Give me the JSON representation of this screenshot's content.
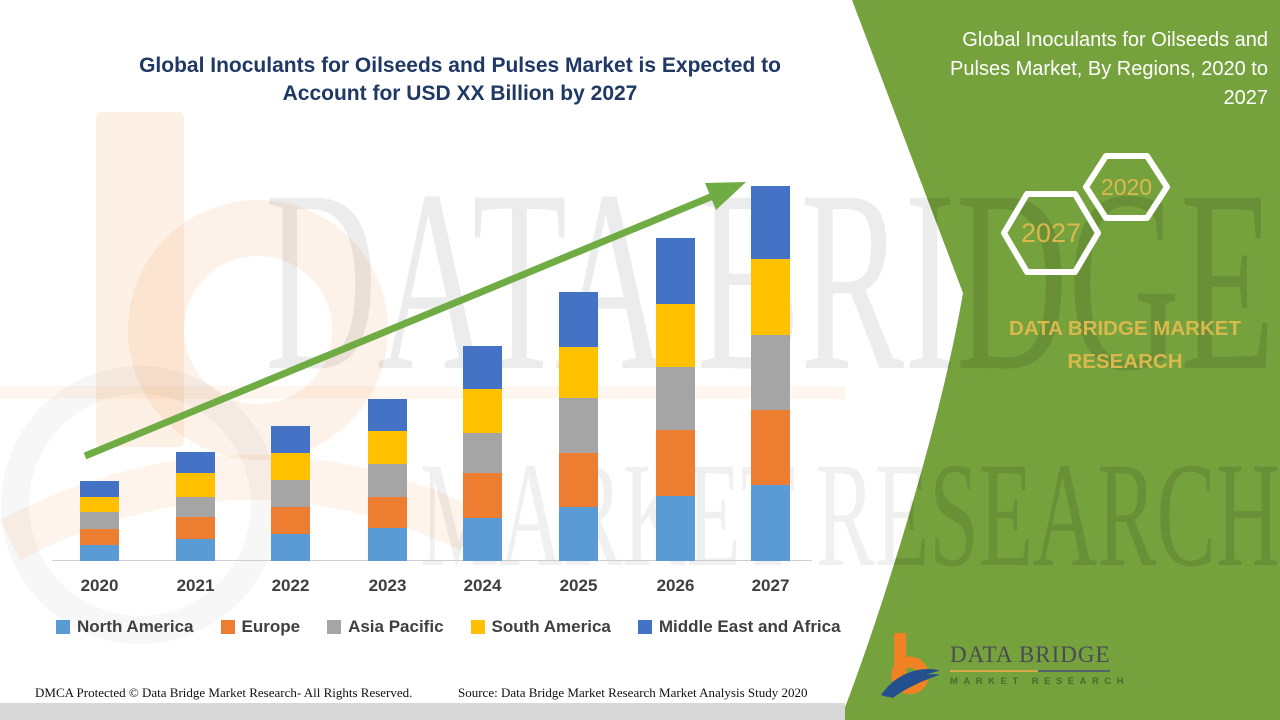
{
  "header": {
    "left_title_lines": [
      "Global Inoculants for Oilseeds and Pulses Market is Expected to",
      "Account for USD XX Billion by 2027"
    ],
    "right_title_lines": [
      "Global Inoculants for Oilseeds and",
      "Pulses Market, By Regions, 2020 to",
      "2027"
    ]
  },
  "side_panel": {
    "hex_small_label": "2020",
    "hex_large_label": "2027",
    "brand_lines": [
      "DATA BRIDGE MARKET",
      "RESEARCH"
    ]
  },
  "chart_data": {
    "type": "bar",
    "stacked": true,
    "title": "Global Inoculants for Oilseeds and Pulses Market is Expected to Account for USD XX Billion by 2027",
    "xlabel": "",
    "ylabel": "",
    "y_axis_visible": false,
    "legend_position": "bottom",
    "value_units": "USD Billion (actual values undisclosed, shown as XX)",
    "values_note": "relative magnitudes estimated from bar pixel heights; all five regions grow steadily 2020-2027",
    "categories": [
      "2020",
      "2021",
      "2022",
      "2023",
      "2024",
      "2025",
      "2026",
      "2027"
    ],
    "series": [
      {
        "name": "North America",
        "color": "#5B9BD5",
        "values": [
          16,
          22,
          27,
          33,
          43,
          54,
          65,
          76
        ]
      },
      {
        "name": "Europe",
        "color": "#ED7D31",
        "values": [
          16,
          22,
          27,
          31,
          45,
          54,
          66,
          75
        ]
      },
      {
        "name": "Asia Pacific",
        "color": "#A5A5A5",
        "values": [
          17,
          20,
          27,
          33,
          40,
          55,
          63,
          75
        ]
      },
      {
        "name": "South America",
        "color": "#FFC000",
        "values": [
          15,
          24,
          27,
          33,
          44,
          51,
          63,
          76
        ]
      },
      {
        "name": "Middle East and Africa",
        "color": "#4472C4",
        "values": [
          16,
          21,
          27,
          32,
          43,
          55,
          66,
          73
        ]
      }
    ]
  },
  "watermark": {
    "row1": "DATA BRIDGE",
    "row2": "MARKET RESEARCH"
  },
  "logo": {
    "name": "DATA BRIDGE",
    "sub": "MARKET RESEARCH"
  },
  "footer": {
    "dmca": "DMCA Protected © Data Bridge Market Research- All Rights Reserved.",
    "source": "Source: Data Bridge Market Research Market Analysis Study 2020"
  },
  "colors": {
    "panel_green": "#76A23D",
    "accent_gold": "#D9B94E",
    "title_navy": "#1F3864",
    "arrow_green": "#6FAC44",
    "legend_text": "#3F3F3F",
    "footer_band": "#D8D8D8"
  }
}
